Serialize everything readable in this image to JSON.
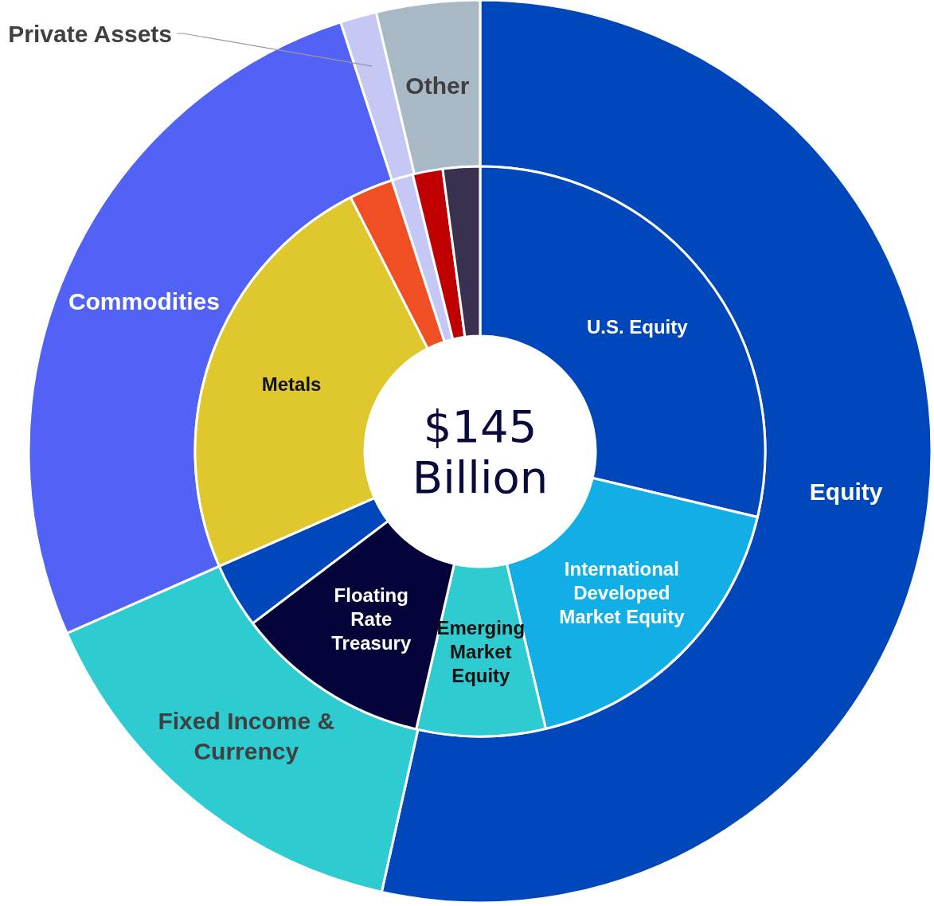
{
  "chart_data": [
    {
      "type": "donut",
      "categories": [
        "Equity",
        "Fixed Income & Currency",
        "Commodities",
        "Private Assets",
        "Other"
      ],
      "values": [
        53.5,
        14.9,
        26.6,
        1.3,
        3.7
      ],
      "colors": [
        "#0047bb",
        "#2ecbd0",
        "#5162f5",
        "#c5c8f5",
        "#a9b8c5"
      ]
    },
    {
      "type": "donut",
      "title": "$145 Billion",
      "categories": [
        "U.S. Equity",
        "International Developed Market Equity",
        "Emerging Market Equity",
        "Floating Rate Treasury",
        null,
        "Metals",
        null,
        null,
        null,
        null
      ],
      "values": [
        28.7,
        17.6,
        7.3,
        11.1,
        3.7,
        24.1,
        2.5,
        1.2,
        1.7,
        2.1
      ],
      "colors": [
        "#0047bb",
        "#12aee6",
        "#2ecbd0",
        "#04043a",
        "#0047bb",
        "#dfc82e",
        "#f04e23",
        "#c5c8f5",
        "#c00000",
        "#3a3050"
      ]
    }
  ]
}
